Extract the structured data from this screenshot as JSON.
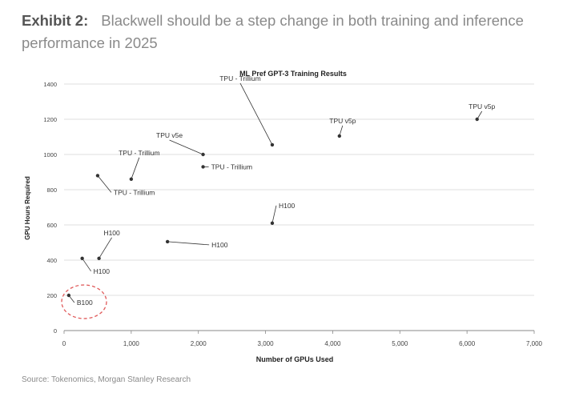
{
  "exhibit": {
    "label": "Exhibit 2:",
    "title": "Blackwell should be a step change in both training and inference performance in 2025"
  },
  "source": "Source: Tokenomics, Morgan Stanley Research",
  "chart_data": {
    "type": "scatter",
    "title": "ML Pref GPT-3 Training Results",
    "xlabel": "Number of GPUs Used",
    "ylabel": "GPU Hours Required",
    "xlim": [
      0,
      7000
    ],
    "ylim": [
      0,
      1400
    ],
    "xticks": [
      0,
      1000,
      2000,
      3000,
      4000,
      5000,
      6000,
      7000
    ],
    "xtick_labels": [
      "0",
      "1,000",
      "2,000",
      "3,000",
      "4,000",
      "5,000",
      "6,000",
      "7,000"
    ],
    "yticks": [
      0,
      200,
      400,
      600,
      800,
      1000,
      1200,
      1400
    ],
    "ytick_labels": [
      "0",
      "200",
      "400",
      "600",
      "800",
      "1000",
      "1200",
      "1400"
    ],
    "grid": "horizontal",
    "highlight": {
      "label": "B100",
      "color": "#e05a5a"
    },
    "points": [
      {
        "x": 6150,
        "y": 1200,
        "label": "TPU v5p"
      },
      {
        "x": 3100,
        "y": 1055,
        "label": "TPU - Trillium"
      },
      {
        "x": 4100,
        "y": 1105,
        "label": "TPU v5p"
      },
      {
        "x": 2070,
        "y": 1000,
        "label": "TPU v5e"
      },
      {
        "x": 2070,
        "y": 930,
        "label": "TPU - Trillium"
      },
      {
        "x": 1000,
        "y": 860,
        "label": "TPU - Trillium"
      },
      {
        "x": 500,
        "y": 880,
        "label": "TPU - Trillium"
      },
      {
        "x": 3100,
        "y": 610,
        "label": "H100"
      },
      {
        "x": 1540,
        "y": 505,
        "label": "H100"
      },
      {
        "x": 520,
        "y": 410,
        "label": "H100"
      },
      {
        "x": 270,
        "y": 410,
        "label": "H100"
      },
      {
        "x": 70,
        "y": 200,
        "label": "B100"
      }
    ]
  }
}
